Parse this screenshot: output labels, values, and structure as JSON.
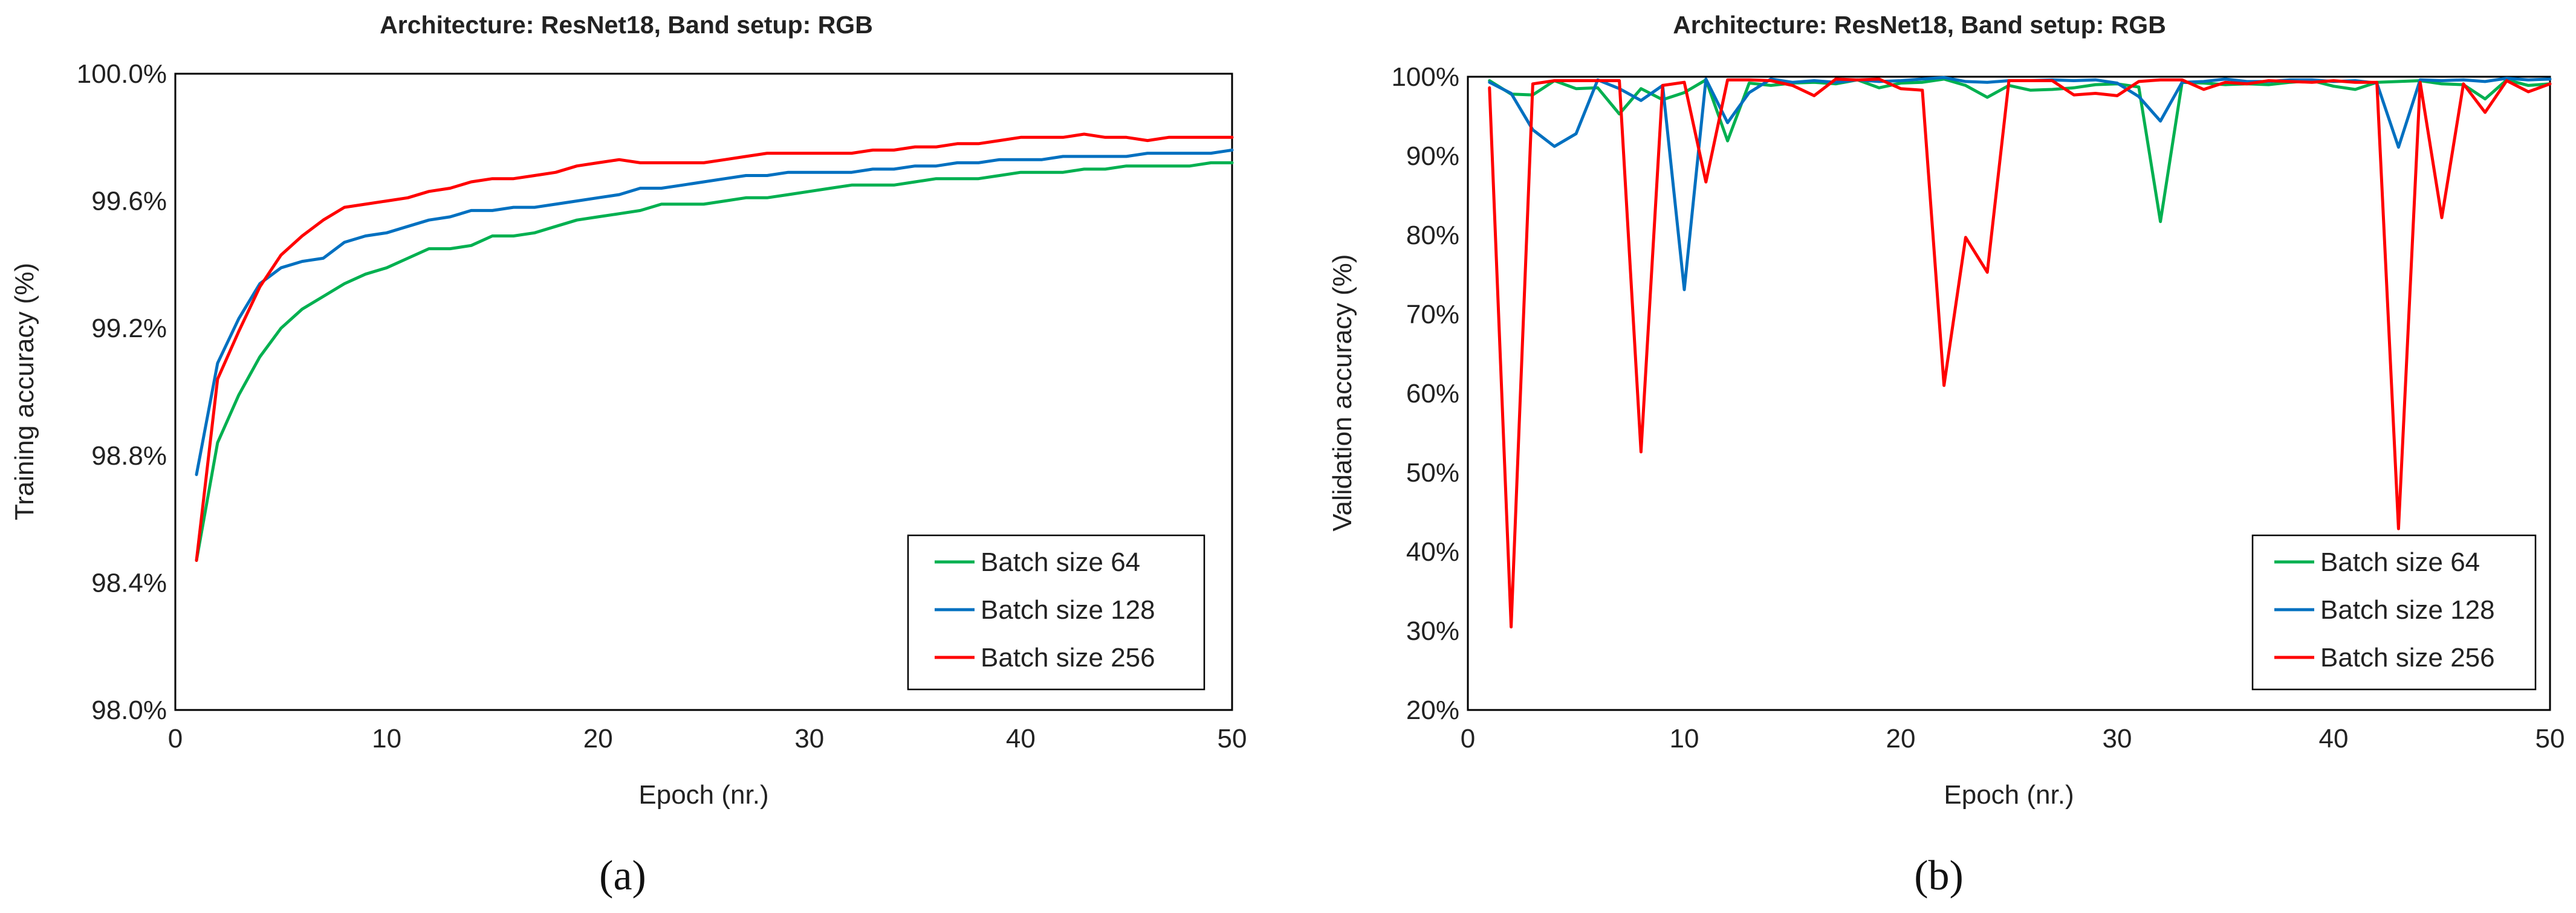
{
  "chart_data": [
    {
      "type": "line",
      "panel_label": "(a)",
      "title": "Architecture: ResNet18, Band setup: RGB",
      "xlabel": "Epoch (nr.)",
      "ylabel": "Training accuracy (%)",
      "xlim": [
        0,
        50
      ],
      "ylim": [
        98.0,
        100.0
      ],
      "xticks": [
        0,
        10,
        20,
        30,
        40,
        50
      ],
      "xtick_labels": [
        "0",
        "10",
        "20",
        "30",
        "40",
        "50"
      ],
      "yticks": [
        98.0,
        98.4,
        98.8,
        99.2,
        99.6,
        100.0
      ],
      "ytick_labels": [
        "98.0%",
        "98.4%",
        "98.8%",
        "99.2%",
        "99.6%",
        "100.0%"
      ],
      "grid": false,
      "legend_position": "bottom-right",
      "x": [
        1,
        2,
        3,
        4,
        5,
        6,
        7,
        8,
        9,
        10,
        11,
        12,
        13,
        14,
        15,
        16,
        17,
        18,
        19,
        20,
        21,
        22,
        23,
        24,
        25,
        26,
        27,
        28,
        29,
        30,
        31,
        32,
        33,
        34,
        35,
        36,
        37,
        38,
        39,
        40,
        41,
        42,
        43,
        44,
        45,
        46,
        47,
        48,
        49,
        50
      ],
      "series": [
        {
          "name": "Batch size 64",
          "color": "#00b050",
          "values": [
            98.47,
            98.84,
            98.99,
            99.11,
            99.2,
            99.26,
            99.3,
            99.34,
            99.37,
            99.39,
            99.42,
            99.45,
            99.45,
            99.46,
            99.49,
            99.49,
            99.5,
            99.52,
            99.54,
            99.55,
            99.56,
            99.57,
            99.59,
            99.59,
            99.59,
            99.6,
            99.61,
            99.61,
            99.62,
            99.63,
            99.64,
            99.65,
            99.65,
            99.65,
            99.66,
            99.67,
            99.67,
            99.67,
            99.68,
            99.69,
            99.69,
            99.69,
            99.7,
            99.7,
            99.71,
            99.71,
            99.71,
            99.71,
            99.72,
            99.72
          ]
        },
        {
          "name": "Batch size 128",
          "color": "#0070c0",
          "values": [
            98.74,
            99.09,
            99.23,
            99.34,
            99.39,
            99.41,
            99.42,
            99.47,
            99.49,
            99.5,
            99.52,
            99.54,
            99.55,
            99.57,
            99.57,
            99.58,
            99.58,
            99.59,
            99.6,
            99.61,
            99.62,
            99.64,
            99.64,
            99.65,
            99.66,
            99.67,
            99.68,
            99.68,
            99.69,
            99.69,
            99.69,
            99.69,
            99.7,
            99.7,
            99.71,
            99.71,
            99.72,
            99.72,
            99.73,
            99.73,
            99.73,
            99.74,
            99.74,
            99.74,
            99.74,
            99.75,
            99.75,
            99.75,
            99.75,
            99.76
          ]
        },
        {
          "name": "Batch size 256",
          "color": "#ff0000",
          "values": [
            98.47,
            99.04,
            99.19,
            99.33,
            99.43,
            99.49,
            99.54,
            99.58,
            99.59,
            99.6,
            99.61,
            99.63,
            99.64,
            99.66,
            99.67,
            99.67,
            99.68,
            99.69,
            99.71,
            99.72,
            99.73,
            99.72,
            99.72,
            99.72,
            99.72,
            99.73,
            99.74,
            99.75,
            99.75,
            99.75,
            99.75,
            99.75,
            99.76,
            99.76,
            99.77,
            99.77,
            99.78,
            99.78,
            99.79,
            99.8,
            99.8,
            99.8,
            99.81,
            99.8,
            99.8,
            99.79,
            99.8,
            99.8,
            99.8,
            99.8
          ]
        }
      ]
    },
    {
      "type": "line",
      "panel_label": "(b)",
      "title": "Architecture: ResNet18, Band setup: RGB",
      "xlabel": "Epoch (nr.)",
      "ylabel": "Validation accuracy (%)",
      "xlim": [
        0,
        50
      ],
      "ylim": [
        20,
        100
      ],
      "xticks": [
        0,
        10,
        20,
        30,
        40,
        50
      ],
      "xtick_labels": [
        "0",
        "10",
        "20",
        "30",
        "40",
        "50"
      ],
      "yticks": [
        20,
        30,
        40,
        50,
        60,
        70,
        80,
        90,
        100
      ],
      "ytick_labels": [
        "20%",
        "30%",
        "40%",
        "50%",
        "60%",
        "70%",
        "80%",
        "90%",
        "100%"
      ],
      "grid": false,
      "legend_position": "bottom-right",
      "x": [
        1,
        2,
        3,
        4,
        5,
        6,
        7,
        8,
        9,
        10,
        11,
        12,
        13,
        14,
        15,
        16,
        17,
        18,
        19,
        20,
        21,
        22,
        23,
        24,
        25,
        26,
        27,
        28,
        29,
        30,
        31,
        32,
        33,
        34,
        35,
        36,
        37,
        38,
        39,
        40,
        41,
        42,
        43,
        44,
        45,
        46,
        47,
        48,
        49,
        50
      ],
      "series": [
        {
          "name": "Batch size 64",
          "color": "#00b050",
          "values": [
            99.5,
            97.8,
            97.7,
            99.5,
            98.5,
            98.6,
            95.3,
            98.5,
            97.1,
            98.0,
            99.6,
            91.9,
            99.2,
            98.9,
            99.2,
            99.3,
            99.1,
            99.6,
            98.6,
            99.2,
            99.3,
            99.7,
            98.9,
            97.4,
            98.9,
            98.3,
            98.4,
            98.6,
            99.0,
            99.1,
            98.7,
            81.7,
            99.3,
            99.2,
            99.0,
            99.1,
            99.0,
            99.3,
            99.5,
            98.8,
            98.4,
            99.3,
            99.4,
            99.5,
            99.1,
            99.0,
            97.2,
            99.6,
            98.9,
            99.1
          ]
        },
        {
          "name": "Batch size 128",
          "color": "#0070c0",
          "values": [
            99.3,
            97.9,
            93.3,
            91.2,
            92.8,
            99.6,
            98.5,
            97.0,
            98.9,
            73.1,
            99.7,
            94.2,
            98.0,
            99.7,
            99.3,
            99.5,
            99.3,
            99.6,
            99.4,
            99.5,
            99.7,
            99.9,
            99.4,
            99.3,
            99.5,
            99.5,
            99.6,
            99.5,
            99.6,
            99.2,
            97.5,
            94.4,
            99.3,
            99.4,
            99.7,
            99.4,
            99.4,
            99.6,
            99.6,
            99.4,
            99.5,
            99.2,
            91.1,
            99.6,
            99.5,
            99.6,
            99.4,
            99.8,
            99.6,
            99.7
          ]
        },
        {
          "name": "Batch size 256",
          "color": "#ff0000",
          "values": [
            98.6,
            30.5,
            99.1,
            99.5,
            99.5,
            99.5,
            99.5,
            52.6,
            98.9,
            99.3,
            86.7,
            99.6,
            99.6,
            99.5,
            98.9,
            97.6,
            99.7,
            99.6,
            99.7,
            98.5,
            98.3,
            61.0,
            79.7,
            75.3,
            99.5,
            99.5,
            99.5,
            97.7,
            97.9,
            97.6,
            99.4,
            99.6,
            99.6,
            98.4,
            99.3,
            99.1,
            99.5,
            99.4,
            99.3,
            99.5,
            99.3,
            99.3,
            42.9,
            99.3,
            82.2,
            99.1,
            95.5,
            99.5,
            98.1,
            99.1
          ]
        }
      ]
    }
  ]
}
